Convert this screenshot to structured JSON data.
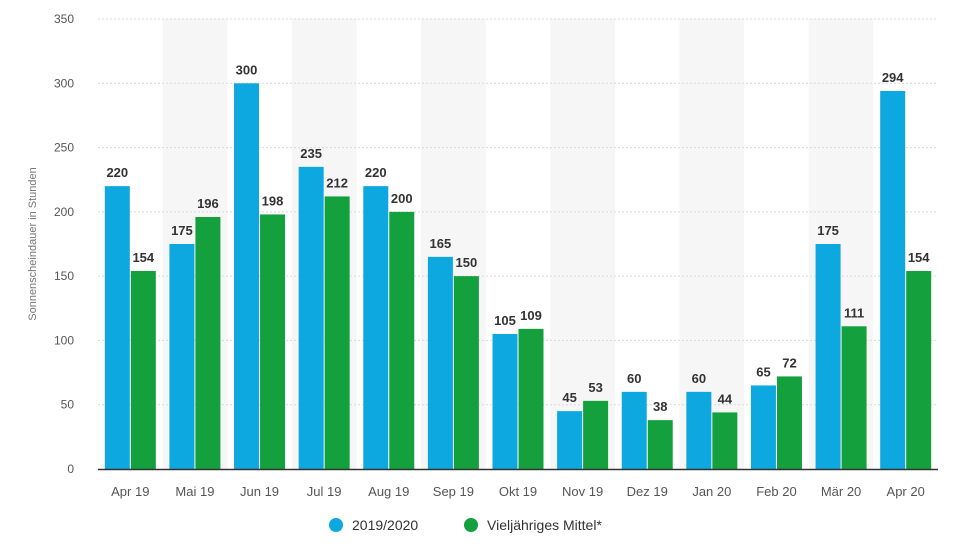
{
  "chart_data": {
    "type": "bar",
    "title": "",
    "xlabel": "",
    "ylabel": "Sonnenscheindauer in Stunden",
    "ylim": [
      0,
      350
    ],
    "yticks": [
      0,
      50,
      100,
      150,
      200,
      250,
      300,
      350
    ],
    "grid": true,
    "legend_position": "bottom-center",
    "categories": [
      "Apr 19",
      "Mai 19",
      "Jun 19",
      "Jul 19",
      "Aug 19",
      "Sep 19",
      "Okt 19",
      "Nov 19",
      "Dez 19",
      "Jan 20",
      "Feb 20",
      "Mär 20",
      "Apr 20"
    ],
    "series": [
      {
        "name": "2019/2020",
        "color": "#0ea8e0",
        "values": [
          220,
          175,
          300,
          235,
          220,
          165,
          105,
          45,
          60,
          60,
          65,
          175,
          294
        ]
      },
      {
        "name": "Vieljähriges Mittel*",
        "color": "#14a03c",
        "values": [
          154,
          196,
          198,
          212,
          200,
          150,
          109,
          53,
          38,
          44,
          72,
          111,
          154
        ]
      }
    ]
  }
}
